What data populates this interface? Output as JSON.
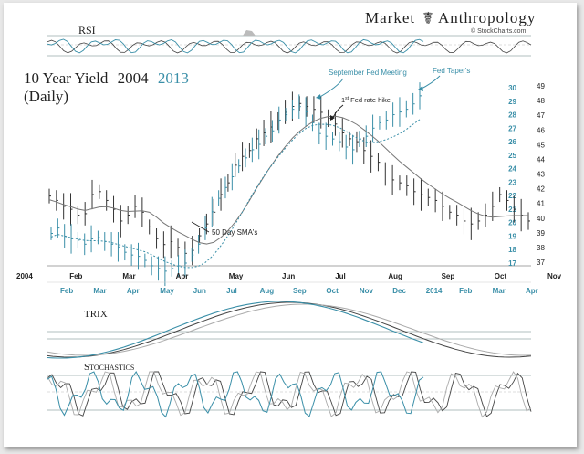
{
  "brand": {
    "part1": "Market",
    "part2": "Anthropology",
    "credit": "© StockCharts.com"
  },
  "chart_data": {
    "type": "line",
    "title": "10 Year Yield",
    "title_year_a": "2004",
    "title_year_b": "2013",
    "subtitle": "(Daily)",
    "colors": {
      "y2004": "#333333",
      "y2013": "#3a8fa8",
      "sma2004": "#777777",
      "sma2013": "#3a8fa8",
      "rsi_fill": "#bbbbbb"
    },
    "x_labels_2004": [
      "2004",
      "Feb",
      "Mar",
      "Apr",
      "May",
      "Jun",
      "Jul",
      "Aug",
      "Sep",
      "Oct",
      "Nov"
    ],
    "x_labels_2013": [
      "Feb",
      "Mar",
      "Apr",
      "May",
      "Jun",
      "Jul",
      "Aug",
      "Sep",
      "Oct",
      "Nov",
      "Dec",
      "2014",
      "Feb",
      "Mar",
      "Apr"
    ],
    "y_left_2013": [
      17,
      18,
      19,
      20,
      21,
      22,
      23,
      24,
      25,
      26,
      27,
      28,
      29,
      30
    ],
    "y_right_2004": [
      37,
      38,
      39,
      40,
      41,
      42,
      43,
      44,
      45,
      46,
      47,
      48,
      49
    ],
    "series": [
      {
        "name": "2004",
        "values": [
          41.5,
          41.2,
          40.8,
          40.6,
          40.2,
          40.3,
          41.6,
          41.8,
          41.2,
          40.6,
          39.8,
          40.2,
          40.8,
          40.4,
          39.4,
          38.6,
          38.2,
          38.4,
          38.0,
          37.6,
          37.8,
          38.8,
          39.6,
          40.4,
          41.6,
          42.4,
          43.6,
          44.2,
          44.6,
          45.4,
          45.8,
          46.2,
          46.6,
          47.2,
          47.6,
          47.8,
          47.6,
          47.4,
          47.2,
          46.8,
          46.4,
          45.8,
          45.4,
          45.2,
          44.6,
          44.2,
          43.8,
          43.0,
          42.6,
          42.4,
          42.2,
          41.8,
          41.6,
          41.4,
          41.2,
          40.8,
          40.4,
          40.2,
          39.8,
          39.6,
          39.8,
          40.2,
          40.8,
          41.6,
          41.2,
          40.6,
          40.2,
          39.8
        ]
      },
      {
        "name": "2013",
        "values": [
          19.2,
          19.6,
          19.0,
          18.8,
          18.7,
          18.4,
          18.8,
          18.9,
          18.6,
          18.4,
          18.2,
          17.8,
          17.6,
          17.5,
          17.2,
          16.8,
          16.6,
          16.4,
          16.6,
          16.8,
          17.0,
          17.6,
          18.4,
          19.6,
          20.8,
          21.8,
          22.6,
          23.4,
          24.2,
          24.8,
          25.4,
          25.8,
          26.4,
          26.8,
          27.6,
          28.0,
          28.4,
          28.6,
          28.2,
          27.4,
          26.6,
          26.4,
          26.2,
          26.0,
          25.6,
          25.4,
          26.2,
          26.4,
          27.0,
          27.4,
          27.6,
          28.0,
          28.2,
          28.4,
          28.8,
          29.4
        ]
      }
    ],
    "annotations": {
      "sept_fed": "September Fed Meeting",
      "taper": "Fed Taper's",
      "hike_pre": "1",
      "hike_sup": "st",
      "hike_post": " Fed rate hike",
      "sma": "50 Day SMA's"
    },
    "panels": {
      "rsi": "RSI",
      "trix": "TRIX",
      "stochastics": "Stochastics"
    }
  }
}
